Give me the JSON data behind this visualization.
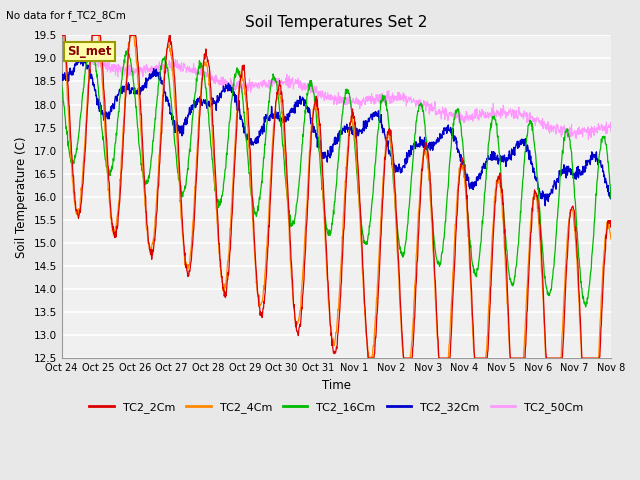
{
  "title": "Soil Temperatures Set 2",
  "no_data_label": "No data for f_TC2_8Cm",
  "si_met_label": "SI_met",
  "ylabel": "Soil Temperature (C)",
  "xlabel": "Time",
  "ylim": [
    12.5,
    19.5
  ],
  "background_color": "#e8e8e8",
  "plot_bg_color": "#f0f0f0",
  "grid_color": "#ffffff",
  "colors": {
    "TC2_2Cm": "#dd0000",
    "TC2_4Cm": "#ff8800",
    "TC2_16Cm": "#00bb00",
    "TC2_32Cm": "#0000cc",
    "TC2_50Cm": "#ff99ff"
  },
  "xtick_labels": [
    "Oct 24",
    "Oct 25",
    "Oct 26",
    "Oct 27",
    "Oct 28",
    "Oct 29",
    "Oct 30",
    "Oct 31",
    "Nov 1",
    "Nov 2",
    "Nov 3",
    "Nov 4",
    "Nov 5",
    "Nov 6",
    "Nov 7",
    "Nov 8"
  ],
  "n_days": 15,
  "pts_per_day": 96,
  "seed": 42
}
